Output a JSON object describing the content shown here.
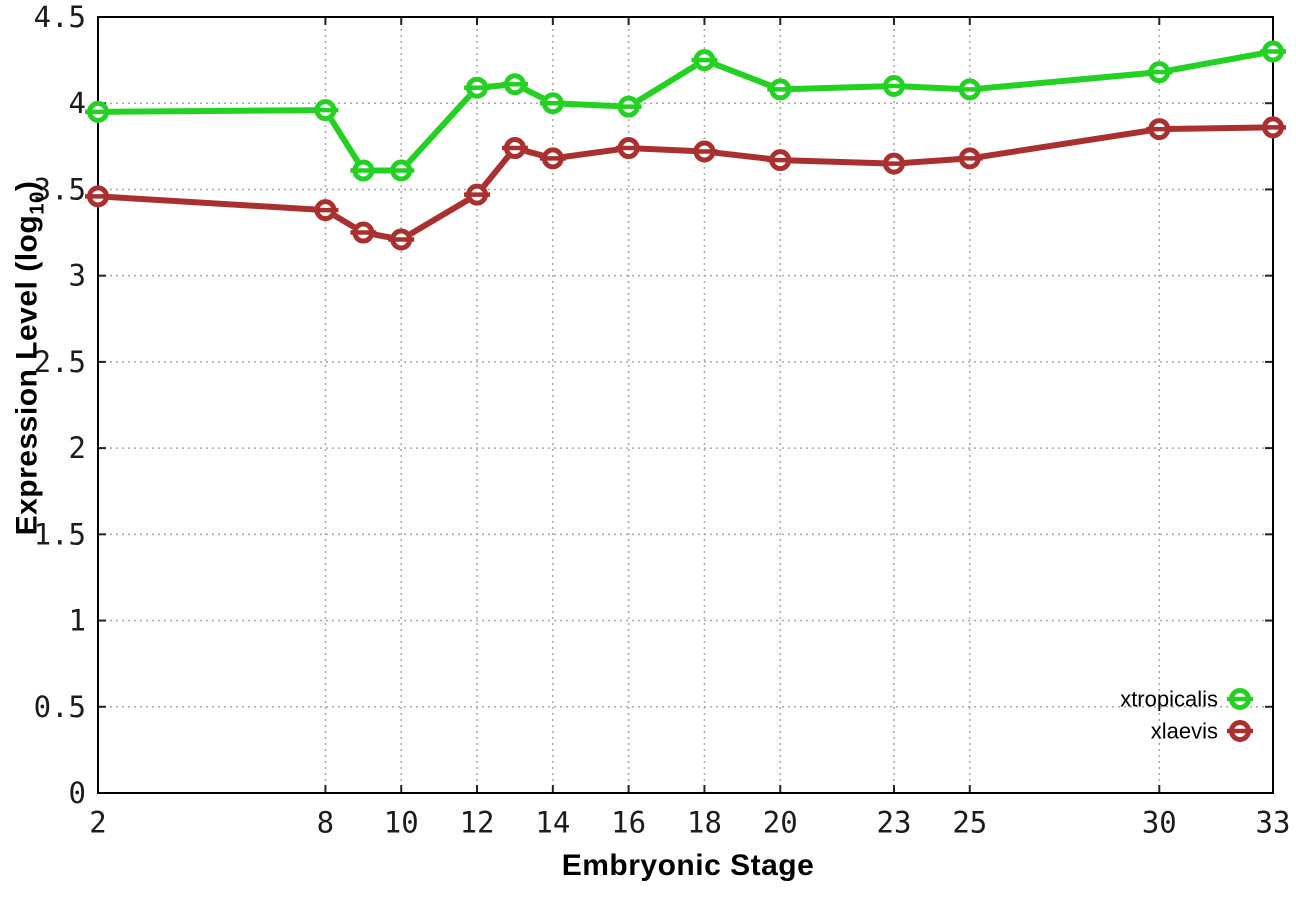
{
  "chart_data": {
    "type": "line",
    "title": "",
    "xlabel": "Embryonic Stage",
    "ylabel": "Expression Level (log10)",
    "ylabel_parts": {
      "pre": "Expression Level (log",
      "sub": "10",
      "post": ")"
    },
    "xlim": [
      2,
      33
    ],
    "ylim": [
      0,
      4.5
    ],
    "x_ticks": [
      2,
      8,
      10,
      12,
      14,
      16,
      18,
      20,
      23,
      25,
      30,
      33
    ],
    "x_tick_labels": [
      "2",
      "8",
      "10",
      "12",
      "14",
      "16",
      "18",
      "20",
      "23",
      "25",
      "30",
      "33"
    ],
    "y_ticks": [
      0,
      0.5,
      1,
      1.5,
      2,
      2.5,
      3,
      3.5,
      4,
      4.5
    ],
    "y_tick_labels": [
      "0",
      "0.5",
      "1",
      "1.5",
      "2",
      "2.5",
      "3",
      "3.5",
      "4",
      "4.5"
    ],
    "grid": true,
    "legend_position": "bottom-right",
    "x": [
      2,
      8,
      9,
      10,
      12,
      13,
      14,
      16,
      18,
      20,
      23,
      25,
      30,
      33
    ],
    "series": [
      {
        "name": "xtropicalis",
        "color": "#23d123",
        "marker": "open-circle-errorbar",
        "values": [
          3.95,
          3.96,
          3.61,
          3.61,
          4.09,
          4.11,
          4.0,
          3.98,
          4.25,
          4.08,
          4.1,
          4.08,
          4.18,
          4.3
        ]
      },
      {
        "name": "xlaevis",
        "color": "#aa2f2f",
        "marker": "open-circle-errorbar",
        "values": [
          3.46,
          3.38,
          3.25,
          3.21,
          3.47,
          3.74,
          3.68,
          3.74,
          3.72,
          3.67,
          3.65,
          3.68,
          3.85,
          3.86
        ]
      }
    ],
    "style": {
      "grid_color": "#a8a8a8",
      "axis_color": "#000000",
      "tick_color": "#222222"
    }
  }
}
